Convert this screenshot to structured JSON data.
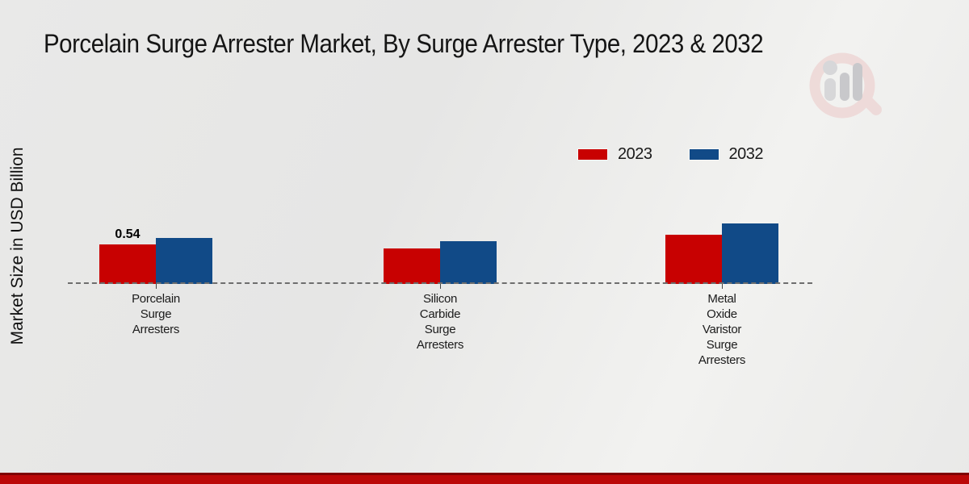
{
  "title": "Porcelain Surge Arrester Market, By Surge Arrester Type, 2023 & 2032",
  "y_axis_label": "Market Size in USD Billion",
  "legend": {
    "items": [
      {
        "label": "2023",
        "color": "#c80101"
      },
      {
        "label": "2032",
        "color": "#114a87"
      }
    ]
  },
  "chart_data": {
    "type": "bar",
    "title": "Porcelain Surge Arrester Market, By Surge Arrester Type, 2023 & 2032",
    "categories": [
      "Porcelain Surge Arresters",
      "Silicon Carbide Surge Arresters",
      "Metal Oxide Varistor Surge Arresters"
    ],
    "series": [
      {
        "name": "2023",
        "color": "#c80101",
        "values": [
          0.54,
          0.48,
          0.67
        ]
      },
      {
        "name": "2032",
        "color": "#114a87",
        "values": [
          0.63,
          0.58,
          0.82
        ]
      }
    ],
    "value_labels": [
      {
        "series_index": 0,
        "category_index": 0,
        "text": "0.54"
      }
    ],
    "xlabel": "",
    "ylabel": "Market Size in USD Billion",
    "ylim": [
      0,
      2.3
    ],
    "grid": false,
    "legend_position": "top-right",
    "baseline_style": "dashed"
  },
  "watermark_icon": "market-research-bar-person-logo",
  "footer": {
    "bar_color": "#bb0808",
    "bar_edge_color": "#7e0202"
  }
}
